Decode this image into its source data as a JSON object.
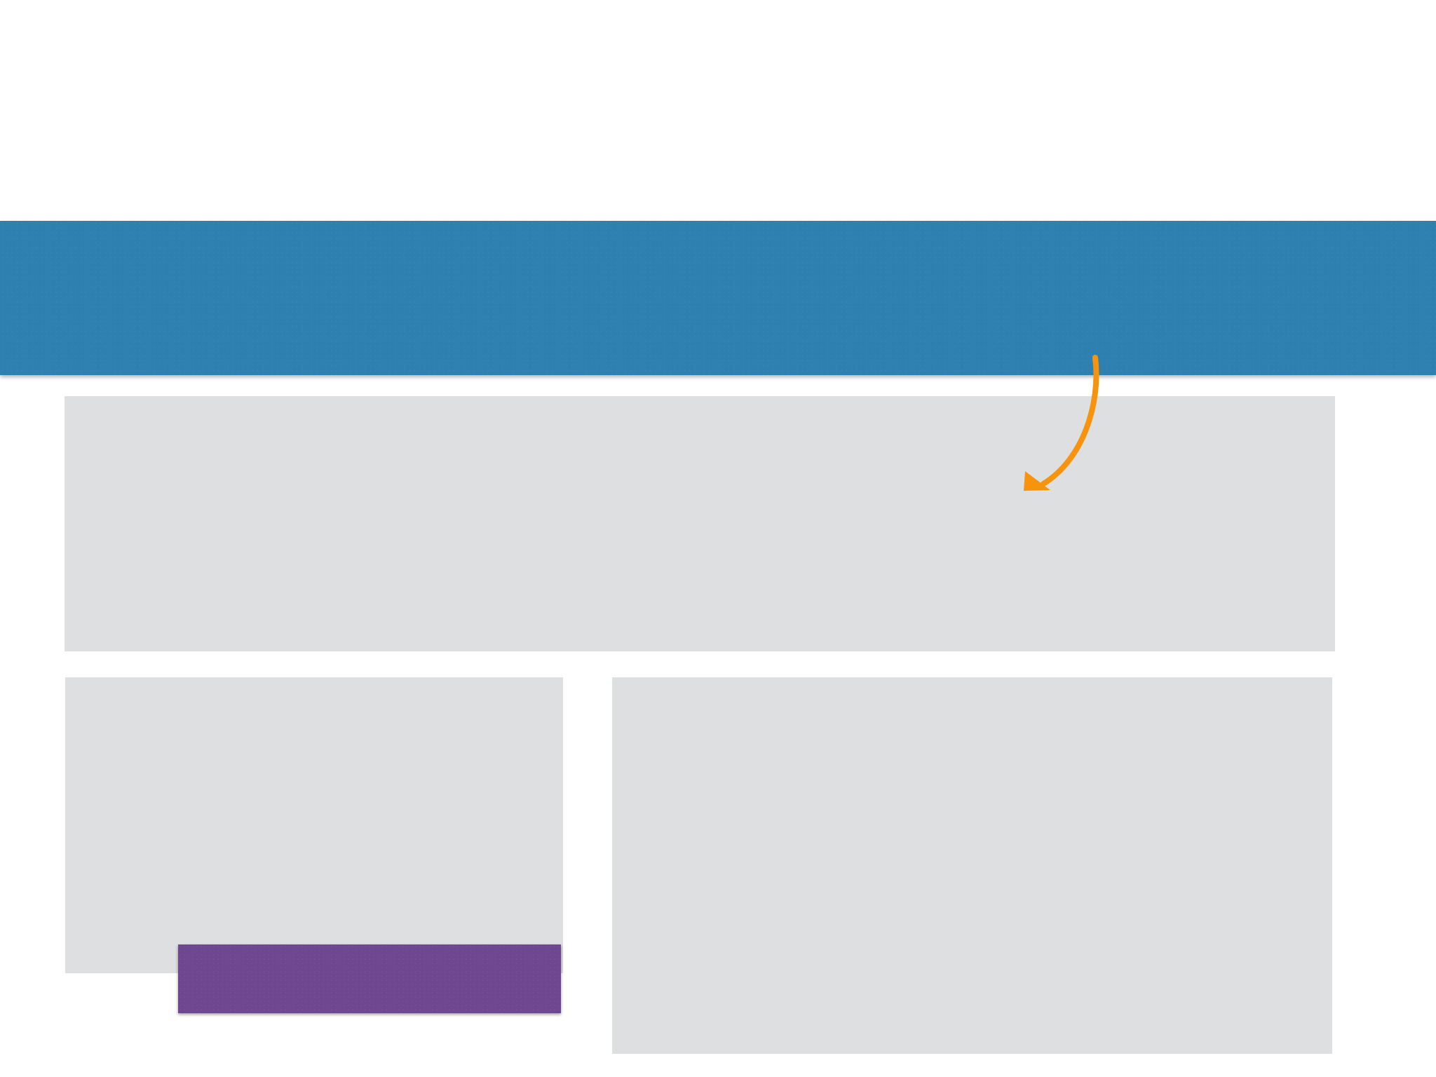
{
  "colors": {
    "background": "#ffffff",
    "header_band": "#2e80b1",
    "panel_fill": "#dedfe1",
    "sticky_note": "#6f4790",
    "arrow": "#f7930c"
  },
  "icons": {
    "connector": "curved-arrow-icon"
  }
}
